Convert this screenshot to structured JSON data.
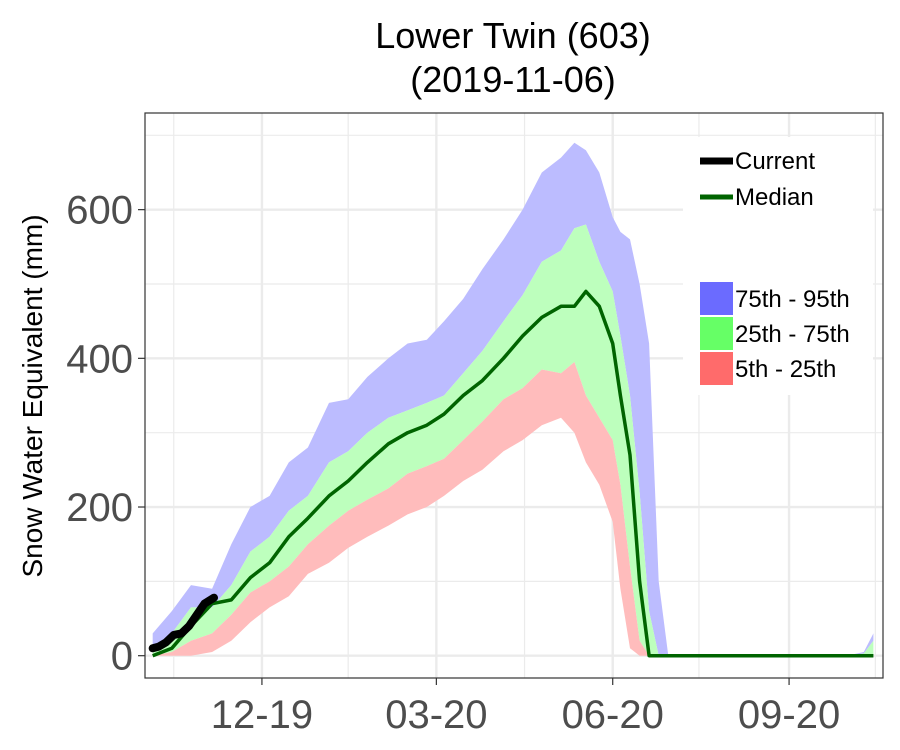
{
  "chart_data": {
    "type": "area",
    "title": "Lower Twin (603)",
    "subtitle": "(2019-11-06)",
    "ylabel": "Snow Water Equivalent (mm)",
    "xlabel": "",
    "xlim": [
      "2019-10-01",
      "2020-10-20"
    ],
    "ylim": [
      -30,
      730
    ],
    "x_ticks": [
      {
        "date": "2019-12-01",
        "label": "12-19"
      },
      {
        "date": "2020-03-01",
        "label": "03-20"
      },
      {
        "date": "2020-06-01",
        "label": "06-20"
      },
      {
        "date": "2020-09-01",
        "label": "09-20"
      }
    ],
    "y_ticks": [
      0,
      200,
      400,
      600
    ],
    "grid": true,
    "legend_position": "top-right",
    "colors": {
      "current": "#000000",
      "median": "#006400",
      "p75_95": "#6b6bff",
      "p25_75": "#66ff66",
      "p5_25": "#ff6b6b",
      "band_75_95_fill": "#bcbcff",
      "band_25_75_fill": "#bdffbd",
      "band_5_25_fill": "#ffbcbc",
      "grid": "#ebebeb",
      "panel_border": "#333333"
    },
    "legend": {
      "lines": [
        {
          "label": "Current",
          "color": "#000000"
        },
        {
          "label": "Median",
          "color": "#006400"
        }
      ],
      "bands": [
        {
          "label": "75th - 95th",
          "color": "#6b6bff"
        },
        {
          "label": "25th - 75th",
          "color": "#66ff66"
        },
        {
          "label": "5th - 25th",
          "color": "#ff6b6b"
        }
      ]
    },
    "x": [
      "2019-10-05",
      "2019-10-15",
      "2019-10-25",
      "2019-11-05",
      "2019-11-15",
      "2019-11-25",
      "2019-12-05",
      "2019-12-15",
      "2019-12-25",
      "2020-01-05",
      "2020-01-15",
      "2020-01-25",
      "2020-02-05",
      "2020-02-15",
      "2020-02-25",
      "2020-03-05",
      "2020-03-15",
      "2020-03-25",
      "2020-04-05",
      "2020-04-15",
      "2020-04-25",
      "2020-05-05",
      "2020-05-12",
      "2020-05-18",
      "2020-05-25",
      "2020-06-01",
      "2020-06-05",
      "2020-06-10",
      "2020-06-15",
      "2020-06-20",
      "2020-06-25",
      "2020-06-30",
      "2020-07-05",
      "2020-07-15",
      "2020-08-01",
      "2020-08-15",
      "2020-09-01",
      "2020-09-15",
      "2020-10-01",
      "2020-10-10",
      "2020-10-15"
    ],
    "series": [
      {
        "name": "95th",
        "values": [
          30,
          60,
          95,
          90,
          150,
          200,
          215,
          260,
          280,
          340,
          345,
          375,
          400,
          420,
          425,
          450,
          480,
          520,
          560,
          600,
          650,
          670,
          690,
          680,
          650,
          590,
          570,
          560,
          500,
          420,
          100,
          0,
          0,
          0,
          0,
          0,
          0,
          0,
          0,
          5,
          30
        ]
      },
      {
        "name": "75th",
        "values": [
          10,
          30,
          65,
          65,
          95,
          140,
          160,
          195,
          215,
          260,
          275,
          300,
          320,
          330,
          340,
          350,
          380,
          410,
          450,
          485,
          530,
          545,
          575,
          580,
          530,
          490,
          430,
          350,
          220,
          60,
          0,
          0,
          0,
          0,
          0,
          0,
          0,
          0,
          0,
          3,
          20
        ]
      },
      {
        "name": "Median",
        "values": [
          0,
          10,
          40,
          70,
          75,
          105,
          125,
          160,
          185,
          215,
          235,
          260,
          285,
          300,
          310,
          325,
          350,
          370,
          400,
          430,
          455,
          470,
          470,
          490,
          470,
          420,
          350,
          270,
          100,
          0,
          0,
          0,
          0,
          0,
          0,
          0,
          0,
          0,
          0,
          0,
          0
        ]
      },
      {
        "name": "25th",
        "values": [
          0,
          5,
          20,
          30,
          55,
          85,
          100,
          120,
          150,
          175,
          195,
          210,
          225,
          245,
          255,
          265,
          290,
          315,
          345,
          360,
          385,
          380,
          395,
          350,
          320,
          290,
          230,
          120,
          20,
          0,
          0,
          0,
          0,
          0,
          0,
          0,
          0,
          0,
          0,
          0,
          0
        ]
      },
      {
        "name": "5th",
        "values": [
          0,
          0,
          0,
          5,
          20,
          45,
          65,
          80,
          110,
          125,
          145,
          160,
          175,
          190,
          200,
          215,
          235,
          250,
          275,
          290,
          310,
          320,
          300,
          260,
          230,
          180,
          90,
          10,
          0,
          0,
          0,
          0,
          0,
          0,
          0,
          0,
          0,
          0,
          0,
          0,
          0
        ]
      }
    ],
    "current": {
      "name": "Current",
      "x": [
        "2019-10-05",
        "2019-10-08",
        "2019-10-12",
        "2019-10-16",
        "2019-10-20",
        "2019-10-24",
        "2019-10-28",
        "2019-11-01",
        "2019-11-06"
      ],
      "values": [
        10,
        12,
        18,
        28,
        30,
        40,
        55,
        70,
        78
      ]
    }
  }
}
